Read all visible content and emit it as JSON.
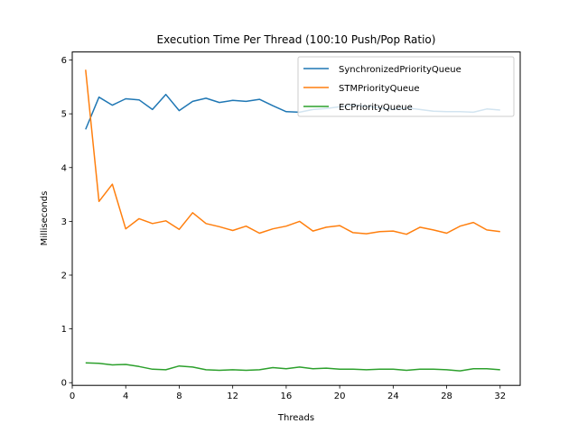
{
  "chart_data": {
    "type": "line",
    "title": "Execution Time Per Thread (100:10 Push/Pop Ratio)",
    "xlabel": "Threads",
    "ylabel": "Milliseconds",
    "xlim": [
      0,
      33.5
    ],
    "ylim": [
      -0.05,
      6.15
    ],
    "xticks": [
      0,
      4,
      8,
      12,
      16,
      20,
      24,
      28,
      32
    ],
    "yticks": [
      0,
      1,
      2,
      3,
      4,
      5,
      6
    ],
    "grid": false,
    "legend_position": "top-right",
    "x": [
      1,
      2,
      3,
      4,
      5,
      6,
      7,
      8,
      9,
      10,
      11,
      12,
      13,
      14,
      15,
      16,
      17,
      18,
      19,
      20,
      21,
      22,
      23,
      24,
      25,
      26,
      27,
      28,
      29,
      30,
      31,
      32
    ],
    "series": [
      {
        "name": "SynchronizedPriorityQueue",
        "color": "#1f77b4",
        "values": [
          4.71,
          5.31,
          5.16,
          5.28,
          5.26,
          5.08,
          5.36,
          5.06,
          5.23,
          5.29,
          5.21,
          5.25,
          5.23,
          5.27,
          5.15,
          5.04,
          5.03,
          5.08,
          5.1,
          5.13,
          5.16,
          5.14,
          5.11,
          5.08,
          5.11,
          5.08,
          5.05,
          5.04,
          5.04,
          5.03,
          5.09,
          5.07
        ]
      },
      {
        "name": "STMPriorityQueue",
        "color": "#ff7f0e",
        "values": [
          5.82,
          3.37,
          3.69,
          2.86,
          3.05,
          2.96,
          3.01,
          2.85,
          3.16,
          2.96,
          2.9,
          2.83,
          2.91,
          2.78,
          2.86,
          2.91,
          3.0,
          2.82,
          2.89,
          2.92,
          2.79,
          2.77,
          2.81,
          2.82,
          2.76,
          2.89,
          2.84,
          2.78,
          2.91,
          2.98,
          2.84,
          2.81
        ]
      },
      {
        "name": "ECPriorityQueue",
        "color": "#2ca02c",
        "values": [
          0.37,
          0.36,
          0.33,
          0.34,
          0.3,
          0.25,
          0.24,
          0.31,
          0.29,
          0.24,
          0.23,
          0.24,
          0.23,
          0.24,
          0.28,
          0.26,
          0.29,
          0.26,
          0.27,
          0.25,
          0.25,
          0.24,
          0.25,
          0.25,
          0.23,
          0.25,
          0.25,
          0.24,
          0.22,
          0.26,
          0.26,
          0.24
        ]
      }
    ]
  }
}
